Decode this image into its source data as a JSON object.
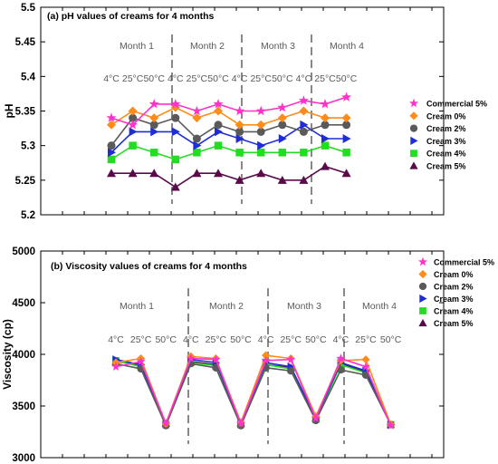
{
  "colors": {
    "Commercial 5%": "#ff33cc",
    "Cream 0%": "#ff8c1a",
    "Cream 2%": "#5a5a5a",
    "Cream 3%": "#1f2dd6",
    "Cream 4%": "#22dd22",
    "Cream 5%": "#5a0a4a"
  },
  "markers": {
    "Commercial 5%": "star",
    "Cream 0%": "diamond",
    "Cream 2%": "circle",
    "Cream 3%": "triangle-right",
    "Cream 4%": "square",
    "Cream 5%": "triangle-up"
  },
  "chart_data": [
    {
      "type": "line",
      "title": "(a) pH values of creams for 4 months",
      "xlabel": "",
      "ylabel": "pH",
      "ylim": [
        5.2,
        5.5
      ],
      "yticks": [
        "5.2",
        "5.25",
        "5.3",
        "5.35",
        "5.4",
        "5.45",
        "5.5"
      ],
      "months": [
        "Month 1",
        "Month 2",
        "Month 3",
        "Month 4"
      ],
      "temps": [
        "4°C",
        "25°C",
        "50°C"
      ],
      "legend_position": "right",
      "series": [
        {
          "name": "Commercial 5%",
          "values": [
            5.34,
            5.33,
            5.36,
            5.36,
            5.35,
            5.36,
            5.35,
            5.35,
            5.355,
            5.365,
            5.36,
            5.37
          ]
        },
        {
          "name": "Cream 0%",
          "values": [
            5.33,
            5.35,
            5.34,
            5.355,
            5.34,
            5.35,
            5.33,
            5.33,
            5.34,
            5.35,
            5.34,
            5.34
          ]
        },
        {
          "name": "Cream 2%",
          "values": [
            5.3,
            5.34,
            5.33,
            5.34,
            5.31,
            5.33,
            5.32,
            5.32,
            5.33,
            5.32,
            5.33,
            5.33
          ]
        },
        {
          "name": "Cream 3%",
          "values": [
            5.29,
            5.32,
            5.32,
            5.32,
            5.3,
            5.32,
            5.31,
            5.3,
            5.31,
            5.33,
            5.31,
            5.31
          ]
        },
        {
          "name": "Cream 4%",
          "values": [
            5.28,
            5.3,
            5.29,
            5.28,
            5.29,
            5.3,
            5.29,
            5.29,
            5.29,
            5.29,
            5.3,
            5.29
          ]
        },
        {
          "name": "Cream 5%",
          "values": [
            5.26,
            5.26,
            5.26,
            5.24,
            5.26,
            5.26,
            5.25,
            5.26,
            5.25,
            5.25,
            5.27,
            5.26
          ]
        }
      ]
    },
    {
      "type": "line",
      "title": "(b) Viscosity values of creams for 4 months",
      "xlabel": "",
      "ylabel": "Viscosity (cp)",
      "ylim": [
        3000,
        5000
      ],
      "yticks": [
        "3000",
        "3500",
        "4000",
        "4500",
        "5000"
      ],
      "months": [
        "Month 1",
        "Month 2",
        "Month 3",
        "Month 4"
      ],
      "temps": [
        "4°C",
        "25°C",
        "50°C"
      ],
      "legend_position": "top-right",
      "series": [
        {
          "name": "Commercial 5%",
          "values": [
            3880,
            3930,
            3330,
            3960,
            3950,
            3330,
            3940,
            3950,
            3380,
            3960,
            3880,
            3310
          ]
        },
        {
          "name": "Cream 0%",
          "values": [
            3920,
            3960,
            3330,
            3980,
            3960,
            3340,
            3990,
            3960,
            3400,
            3940,
            3950,
            3320
          ]
        },
        {
          "name": "Cream 2%",
          "values": [
            3910,
            3860,
            3310,
            3910,
            3870,
            3310,
            3870,
            3840,
            3360,
            3850,
            3800,
            3320
          ]
        },
        {
          "name": "Cream 3%",
          "values": [
            3950,
            3900,
            3330,
            3950,
            3920,
            3330,
            3920,
            3880,
            3380,
            3920,
            3840,
            3320
          ]
        },
        {
          "name": "Cream 4%",
          "values": [
            3940,
            3880,
            3320,
            3920,
            3890,
            3320,
            3900,
            3860,
            3370,
            3900,
            3820,
            3320
          ]
        },
        {
          "name": "Cream 5%",
          "values": [
            3930,
            3900,
            3330,
            3930,
            3900,
            3330,
            3900,
            3870,
            3380,
            3910,
            3830,
            3320
          ]
        }
      ]
    }
  ]
}
